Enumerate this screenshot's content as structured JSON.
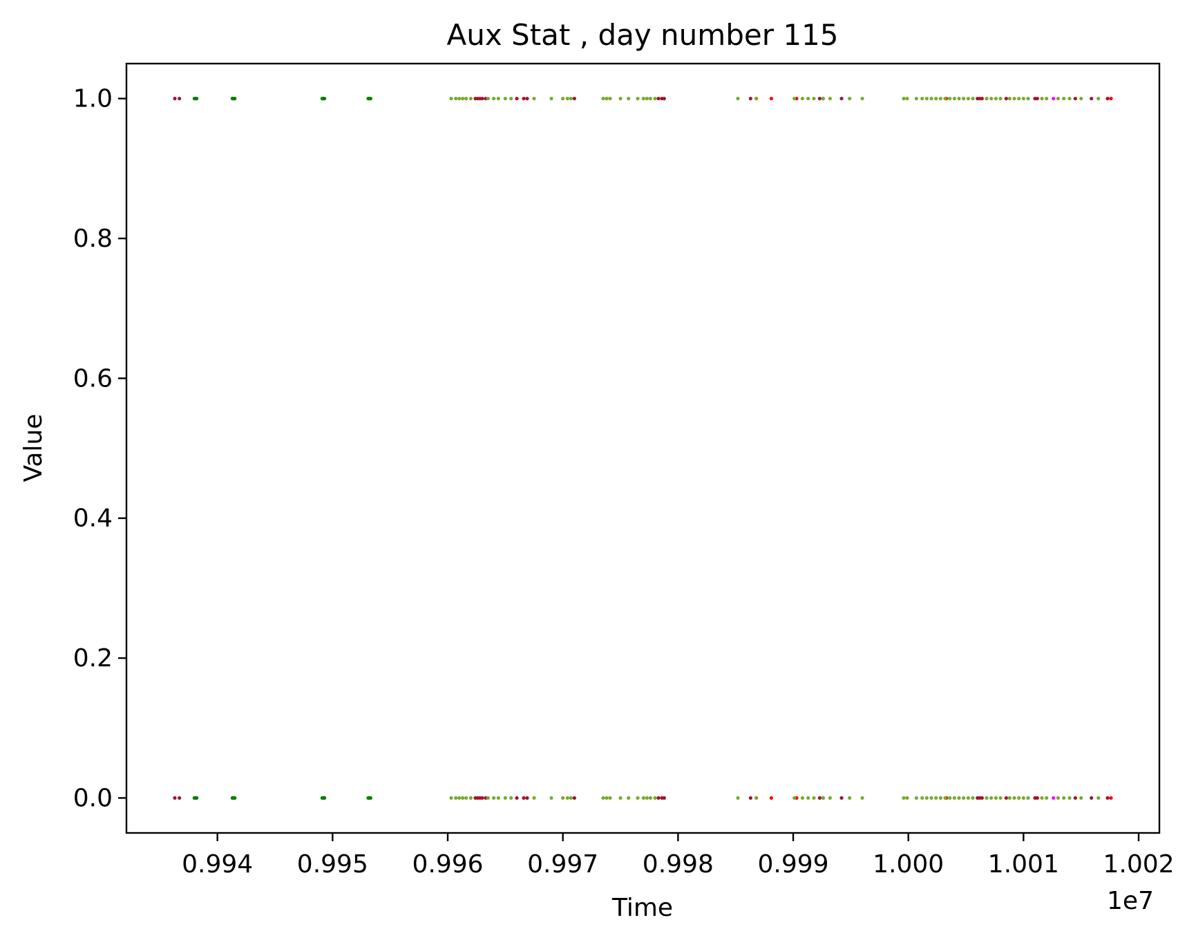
{
  "chart_data": {
    "type": "scatter",
    "title": "Aux Stat , day number 115",
    "xlabel": "Time",
    "ylabel": "Value",
    "x_offset_label": "1e7",
    "xlim": [
      0.99321,
      1.00218
    ],
    "ylim": [
      -0.05,
      1.05
    ],
    "x_ticks": [
      0.994,
      0.995,
      0.996,
      0.997,
      0.998,
      0.999,
      1.0,
      1.001,
      1.002
    ],
    "x_tick_labels": [
      "0.994",
      "0.995",
      "0.996",
      "0.997",
      "0.998",
      "0.999",
      "1.000",
      "1.001",
      "1.002"
    ],
    "y_ticks": [
      0.0,
      0.2,
      0.4,
      0.6,
      0.8,
      1.0
    ],
    "y_tick_labels": [
      "0.0",
      "0.2",
      "0.4",
      "0.6",
      "0.8",
      "1.0"
    ],
    "grid": false,
    "legend": "none",
    "y_values": [
      0,
      1
    ],
    "series": [
      {
        "color": "#008000",
        "x": [
          0.9938,
          0.99381,
          0.99382,
          0.99413,
          0.99414,
          0.99415,
          0.99415,
          0.99491,
          0.99492,
          0.99492,
          0.99493,
          0.99531,
          0.99532,
          0.99533
        ]
      },
      {
        "color": "#a0142e",
        "x": [
          0.99363,
          0.99367,
          0.99624,
          0.99626,
          0.99628,
          0.9963,
          0.99633,
          0.9966,
          0.99666,
          0.99669,
          0.9971,
          0.99783,
          0.99786,
          0.99788,
          0.99863,
          0.99868,
          0.99923,
          0.99926,
          0.99942,
          1.0006,
          1.00062,
          1.00064,
          1.00085,
          1.0011,
          1.00112,
          1.00145,
          1.00159,
          1.00173
        ]
      },
      {
        "color": "#ff0000",
        "x": [
          0.99881,
          0.99903,
          1.00033,
          1.00176
        ]
      },
      {
        "color": "#ff00ff",
        "x": [
          1.00126
        ]
      },
      {
        "color": "#77aa2f",
        "x": [
          0.99603,
          0.99607,
          0.9961,
          0.99613,
          0.99616,
          0.9962,
          0.99635,
          0.9964,
          0.99644,
          0.9965,
          0.99655,
          0.99675,
          0.9969,
          0.997,
          0.99704,
          0.99707,
          0.99735,
          0.99738,
          0.99741,
          0.9975,
          0.99757,
          0.99765,
          0.9977,
          0.99773,
          0.99776,
          0.9978,
          0.99852,
          0.99868,
          0.99901,
          0.99908,
          0.99913,
          0.99918,
          0.99926,
          0.99932,
          0.99949,
          0.9996,
          0.99996,
          0.99999,
          1.00007,
          1.00012,
          1.00016,
          1.0002,
          1.00024,
          1.00028,
          1.00032,
          1.00036,
          1.0004,
          1.00044,
          1.00048,
          1.00052,
          1.00056,
          1.00068,
          1.00072,
          1.00076,
          1.0008,
          1.00088,
          1.00092,
          1.00096,
          1.001,
          1.00104,
          1.00116,
          1.0012,
          1.0013,
          1.00135,
          1.0014,
          1.0015,
          1.00165
        ]
      }
    ]
  }
}
